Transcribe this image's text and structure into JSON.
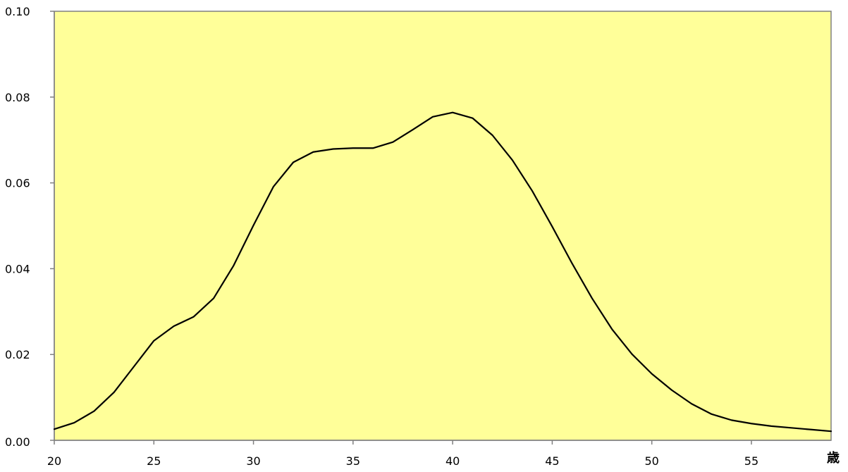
{
  "chart_data": {
    "type": "line",
    "title": "",
    "xlabel": "",
    "ylabel": "",
    "x_unit_label": "歳",
    "xlim": [
      20,
      59
    ],
    "ylim": [
      0,
      0.1
    ],
    "x_ticks": [
      20,
      25,
      30,
      35,
      40,
      45,
      50,
      55
    ],
    "x_tick_labels": [
      "20",
      "25",
      "30",
      "35",
      "40",
      "45",
      "50",
      "55"
    ],
    "y_ticks": [
      0,
      0.02,
      0.04,
      0.06,
      0.08,
      0.1
    ],
    "y_tick_labels": [
      "0.00",
      "0.02",
      "0.04",
      "0.06",
      "0.08",
      "0.10"
    ],
    "grid": false,
    "legend": "none",
    "colors": {
      "plot_background": "#ffff99",
      "line": "#000000",
      "axis": "#808080"
    },
    "series": [
      {
        "x": [
          20,
          21,
          22,
          23,
          24,
          25,
          26,
          27,
          28,
          29,
          30,
          31,
          32,
          33,
          34,
          35,
          36,
          37,
          38,
          39,
          40,
          41,
          42,
          43,
          44,
          45,
          46,
          47,
          48,
          49,
          50,
          51,
          52,
          53,
          54,
          55,
          56,
          57,
          58,
          59
        ],
        "values": [
          0.0026,
          0.0041,
          0.0068,
          0.0112,
          0.0172,
          0.0232,
          0.0266,
          0.0288,
          0.0331,
          0.0407,
          0.0501,
          0.0591,
          0.0648,
          0.0672,
          0.0679,
          0.0681,
          0.0681,
          0.0695,
          0.0724,
          0.0754,
          0.0764,
          0.0751,
          0.0711,
          0.0653,
          0.0581,
          0.0498,
          0.0412,
          0.0331,
          0.0259,
          0.0201,
          0.0155,
          0.0117,
          0.0085,
          0.0061,
          0.0047,
          0.0039,
          0.0033,
          0.0029,
          0.0025,
          0.0021
        ]
      }
    ]
  }
}
